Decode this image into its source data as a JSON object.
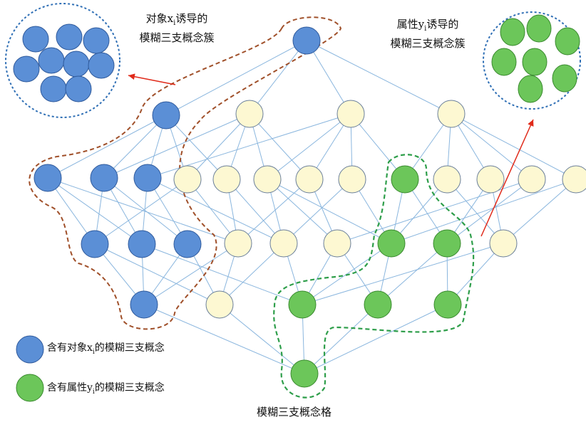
{
  "labels": {
    "object_cluster_line1": "对象x",
    "object_cluster_sub": "i",
    "object_cluster_line1_suffix": "诱导的",
    "object_cluster_line2": "模糊三支概念簇",
    "attr_cluster_line1": "属性y",
    "attr_cluster_sub": "i",
    "attr_cluster_line1_suffix": "诱导的",
    "attr_cluster_line2": "模糊三支概念簇",
    "legend_object_prefix": "含有对象x",
    "legend_object_sub": "i",
    "legend_object_suffix": "的模糊三支概念",
    "legend_attr_prefix": "含有属性y",
    "legend_attr_sub": "i",
    "legend_attr_suffix": "的模糊三支概念",
    "caption": "模糊三支概念格"
  },
  "colors": {
    "blue_fill": "#5b8fd6",
    "blue_stroke": "#2f5a9c",
    "green_fill": "#6cc65a",
    "green_stroke": "#3a8a2f",
    "cream_fill": "#fdf8d2",
    "cream_stroke": "#6a7f9a",
    "edge": "#8ab6de",
    "brown_dash": "#a0502a",
    "green_dash": "#2e9e4a",
    "blue_dash": "#2f6fb5",
    "arrow": "#e02a1a"
  }
}
